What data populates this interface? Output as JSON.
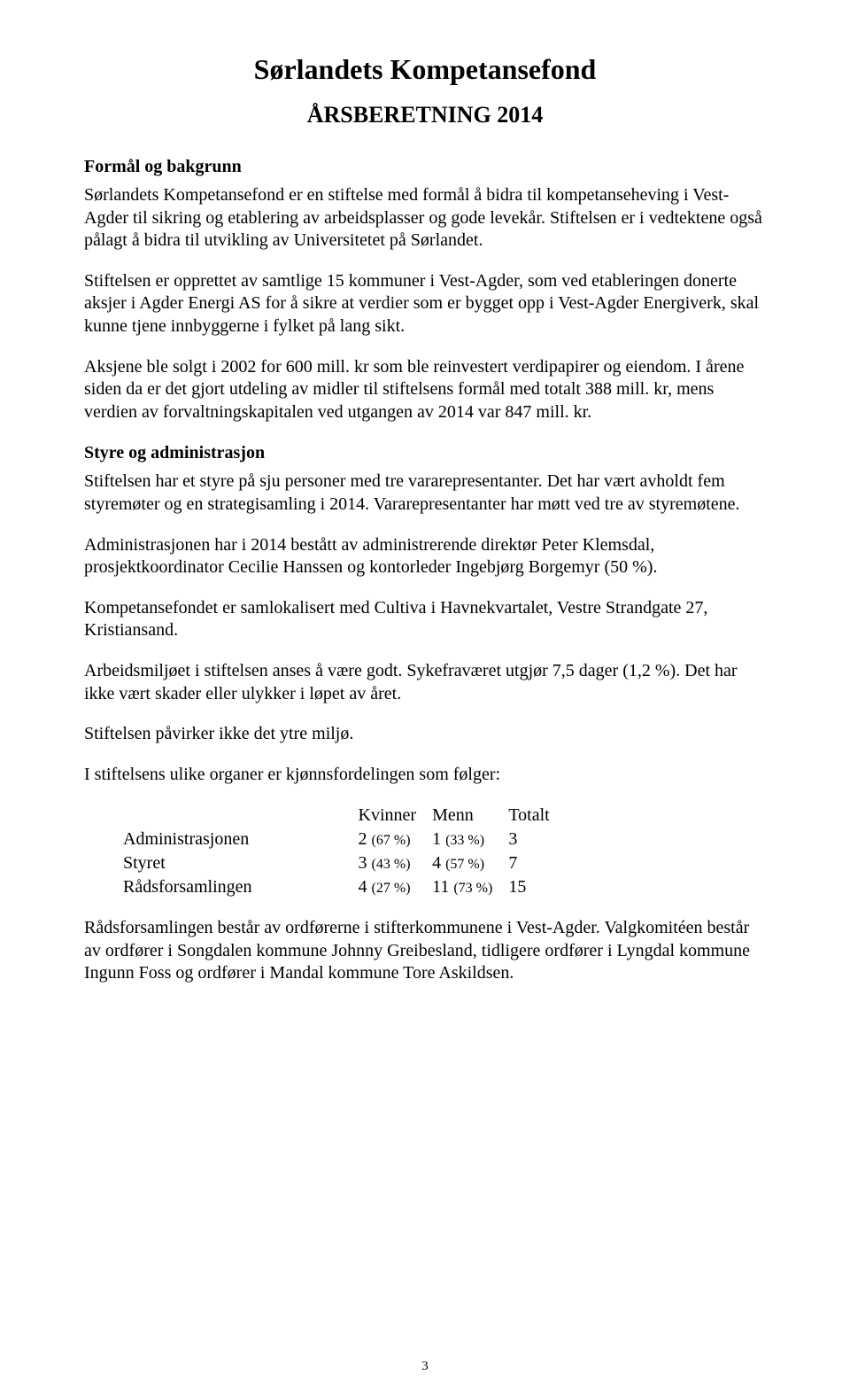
{
  "title": "Sørlandets Kompetansefond",
  "subtitle": "ÅRSBERETNING 2014",
  "sections": {
    "formal": {
      "heading": "Formål og bakgrunn",
      "p1": "Sørlandets Kompetansefond er en stiftelse med formål å bidra til kompetanseheving i Vest-Agder til sikring og etablering av arbeidsplasser og gode levekår. Stiftelsen er i vedtektene også pålagt å bidra til utvikling av Universitetet på Sørlandet.",
      "p2": "Stiftelsen er opprettet av samtlige 15 kommuner i Vest-Agder, som ved etableringen donerte aksjer i Agder Energi AS for å sikre at verdier som er bygget opp i Vest-Agder Energiverk, skal kunne tjene innbyggerne i fylket på lang sikt.",
      "p3": "Aksjene ble solgt i 2002 for 600 mill. kr som ble reinvestert verdipapirer og eiendom. I årene siden da er det gjort utdeling av midler til stiftelsens formål med totalt 388 mill. kr, mens verdien av forvaltningskapitalen ved utgangen av 2014 var 847 mill. kr."
    },
    "styre": {
      "heading": "Styre og administrasjon",
      "p1": "Stiftelsen har et styre på sju personer med tre vararepresentanter. Det har vært avholdt fem styremøter og en strategisamling i 2014. Vararepresentanter har møtt ved tre av styremøtene.",
      "p2": "Administrasjonen har i 2014 bestått av administrerende direktør Peter Klemsdal, prosjektkoordinator Cecilie Hanssen og kontorleder Ingebjørg Borgemyr (50 %).",
      "p3": "Kompetansefondet er samlokalisert med Cultiva i Havnekvartalet, Vestre Strandgate 27, Kristiansand.",
      "p4": "Arbeidsmiljøet i stiftelsen anses å være godt. Sykefraværet utgjør 7,5 dager (1,2 %). Det har ikke vært skader eller ulykker i løpet av året.",
      "p5": "Stiftelsen påvirker ikke det ytre miljø.",
      "p6": "I stiftelsens ulike organer er kjønnsfordelingen som følger:"
    },
    "gender_table": {
      "columns": [
        "",
        "Kvinner",
        "Menn",
        "Totalt"
      ],
      "rows": [
        {
          "label": "Administrasjonen",
          "kvinner_n": "2",
          "kvinner_pct": "(67 %)",
          "menn_n": "1",
          "menn_pct": "(33 %)",
          "totalt": "3"
        },
        {
          "label": "Styret",
          "kvinner_n": "3",
          "kvinner_pct": "(43 %)",
          "menn_n": "4",
          "menn_pct": "(57 %)",
          "totalt": "7"
        },
        {
          "label": "Rådsforsamlingen",
          "kvinner_n": "4",
          "kvinner_pct": "(27 %)",
          "menn_n": "11",
          "menn_pct": "(73 %)",
          "totalt": "15"
        }
      ]
    },
    "closing": {
      "p1": "Rådsforsamlingen består av ordførerne i stifterkommunene i Vest-Agder. Valgkomitéen består av ordfører i Songdalen kommune Johnny Greibesland, tidligere ordfører i Lyngdal kommune Ingunn Foss og ordfører i Mandal kommune Tore Askildsen."
    }
  },
  "page_number": "3"
}
